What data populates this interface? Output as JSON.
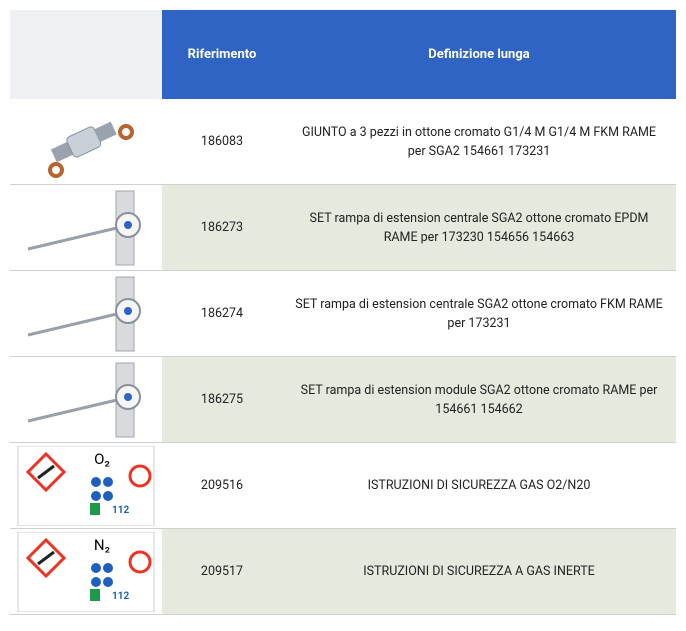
{
  "header": {
    "columns": [
      "Riferimento",
      "Definizione lunga"
    ]
  },
  "rows": [
    {
      "ref": "186083",
      "description": "GIUNTO a 3 pezzi in ottone cromato G1/4 M G1/4 M FKM RAME per SGA2 154661 173231"
    },
    {
      "ref": "186273",
      "description": "SET rampa di estension centrale SGA2 ottone cromato EPDM RAME per 173230 154656 154663"
    },
    {
      "ref": "186274",
      "description": "SET rampa di estension centrale SGA2 ottone cromato FKM RAME per 173231"
    },
    {
      "ref": "186275",
      "description": "SET rampa di estension module SGA2 ottone cromato RAME per 154661 154662"
    },
    {
      "ref": "209516",
      "description": "ISTRUZIONI DI SICUREZZA GAS O2/N20",
      "sign": {
        "gas": "O₂",
        "phone": "112"
      }
    },
    {
      "ref": "209517",
      "description": "ISTRUZIONI DI SICUREZZA A GAS INERTE",
      "sign": {
        "gas": "N₂",
        "phone": "112"
      }
    }
  ]
}
